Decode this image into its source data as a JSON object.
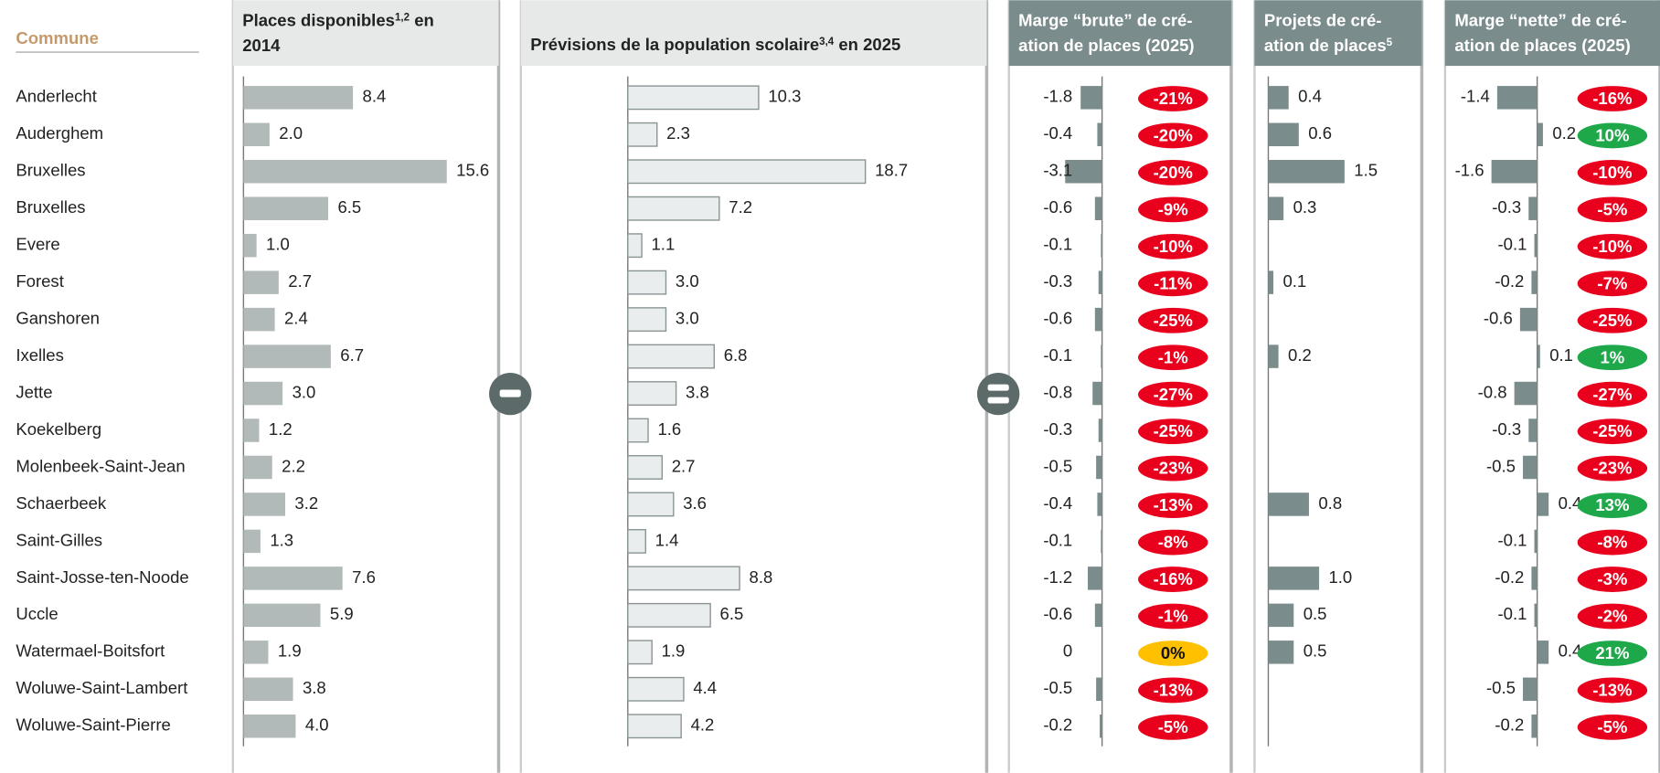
{
  "category_label": "Commune",
  "categories": [
    "Anderlecht",
    "Auderghem",
    "Bruxelles",
    "Bruxelles",
    "Evere",
    "Forest",
    "Ganshoren",
    "Ixelles",
    "Jette",
    "Koekelberg",
    "Molenbeek-Saint-Jean",
    "Schaerbeek",
    "Saint-Gilles",
    "Saint-Josse-ten-Noode",
    "Uccle",
    "Watermael-Boitsfort",
    "Woluwe-Saint-Lambert",
    "Woluwe-Saint-Pierre"
  ],
  "chart_data": [
    {
      "type": "bar",
      "orientation": "horizontal",
      "title": [
        [
          "Places disponibles",
          {
            "sup": "1,2"
          },
          " en"
        ],
        [
          "2014"
        ]
      ],
      "color": "#b1b9b9",
      "xlim": [
        0,
        19.5
      ],
      "values": [
        8.4,
        2.0,
        15.6,
        6.5,
        1.0,
        2.7,
        2.4,
        6.7,
        3.0,
        1.2,
        2.2,
        3.2,
        1.3,
        7.6,
        5.9,
        1.9,
        3.8,
        4.0
      ],
      "value_labels": [
        "8.4",
        "2.0",
        "15.6",
        "6.5",
        "1.0",
        "2.7",
        "2.4",
        "6.7",
        "3.0",
        "1.2",
        "2.2",
        "3.2",
        "1.3",
        "7.6",
        "5.9",
        "1.9",
        "3.8",
        "4.0"
      ]
    },
    {
      "type": "bar",
      "orientation": "horizontal",
      "title": [
        [
          "Prévisions de la population scolaire",
          {
            "sup": "3,4"
          },
          " en 2025"
        ]
      ],
      "color": "#e9eded",
      "edge_color": "#8a9494",
      "xlim": [
        0,
        30
      ],
      "values": [
        10.3,
        2.3,
        18.7,
        7.2,
        1.1,
        3.0,
        3.0,
        6.8,
        3.8,
        1.6,
        2.7,
        3.6,
        1.4,
        8.8,
        6.5,
        1.9,
        4.4,
        4.2
      ],
      "value_labels": [
        "10.3",
        "2.3",
        "18.7",
        "7.2",
        "1.1",
        "3.0",
        "3.0",
        "6.8",
        "3.8",
        "1.6",
        "2.7",
        "3.6",
        "1.4",
        "8.8",
        "6.5",
        "1.9",
        "4.4",
        "4.2"
      ]
    },
    {
      "type": "bar",
      "orientation": "horizontal",
      "title": [
        [
          "Marge “brute” de cré-"
        ],
        [
          "ation de places (2025)"
        ]
      ],
      "color": "#7b8c8c",
      "xlim": [
        -4,
        0
      ],
      "values": [
        -1.8,
        -0.4,
        -3.1,
        -0.6,
        -0.1,
        -0.3,
        -0.6,
        -0.1,
        -0.8,
        -0.3,
        -0.5,
        -0.4,
        -0.1,
        -1.2,
        -0.6,
        0,
        -0.5,
        -0.2
      ],
      "value_labels": [
        "-1.8",
        "-0.4",
        "-3.1",
        "-0.6",
        "-0.1",
        "-0.3",
        "-0.6",
        "-0.1",
        "-0.8",
        "-0.3",
        "-0.5",
        "-0.4",
        "-0.1",
        "-1.2",
        "-0.6",
        "0",
        "-0.5",
        "-0.2"
      ],
      "badges": {
        "values": [
          -21,
          -20,
          -20,
          -9,
          -10,
          -11,
          -25,
          -1,
          -27,
          -25,
          -23,
          -13,
          -8,
          -16,
          -1,
          0,
          -13,
          -5
        ],
        "value_labels": [
          "-21%",
          "-20%",
          "-20%",
          "-9%",
          "-10%",
          "-11%",
          "-25%",
          "-1%",
          "-27%",
          "-25%",
          "-23%",
          "-13%",
          "-8%",
          "-16%",
          "-1%",
          "0%",
          "-13%",
          "-5%"
        ]
      },
      "badge_colors": {
        "negative": "#e8001c",
        "zero": "#ffc000",
        "positive": "#1ea84a"
      }
    },
    {
      "type": "bar",
      "orientation": "horizontal",
      "title": [
        [
          "Projets de cré-"
        ],
        [
          "ation de places",
          {
            "sup": "5"
          }
        ]
      ],
      "color": "#7b8c8c",
      "xlim": [
        0,
        3
      ],
      "values": [
        0.4,
        0.6,
        1.5,
        0.3,
        null,
        0.1,
        null,
        0.2,
        null,
        null,
        null,
        0.8,
        null,
        1.0,
        0.5,
        0.5,
        null,
        null
      ],
      "value_labels": [
        "0.4",
        "0.6",
        "1.5",
        "0.3",
        null,
        "0.1",
        null,
        "0.2",
        null,
        null,
        null,
        "0.8",
        null,
        "1.0",
        "0.5",
        "0.5",
        null,
        null
      ]
    },
    {
      "type": "bar",
      "orientation": "horizontal",
      "title": [
        [
          "Marge “nette” de cré-"
        ],
        [
          "ation de places (2025)"
        ]
      ],
      "color": "#7b8c8c",
      "xlim": [
        -3,
        1
      ],
      "values": [
        -1.4,
        0.2,
        -1.6,
        -0.3,
        -0.1,
        -0.2,
        -0.6,
        0.1,
        -0.8,
        -0.3,
        -0.5,
        0.4,
        -0.1,
        -0.2,
        -0.1,
        0.4,
        -0.5,
        -0.2
      ],
      "value_labels": [
        "-1.4",
        "0.2",
        "-1.6",
        "-0.3",
        "-0.1",
        "-0.2",
        "-0.6",
        "0.1",
        "-0.8",
        "-0.3",
        "-0.5",
        "0.4",
        "-0.1",
        "-0.2",
        "-0.1",
        "0.4",
        "-0.5",
        "-0.2"
      ],
      "badges": {
        "values": [
          -16,
          10,
          -10,
          -5,
          -10,
          -7,
          -25,
          1,
          -27,
          -25,
          -23,
          13,
          -8,
          -3,
          -2,
          21,
          -13,
          -5
        ],
        "value_labels": [
          "-16%",
          "10%",
          "-10%",
          "-5%",
          "-10%",
          "-7%",
          "-25%",
          "1%",
          "-27%",
          "-25%",
          "-23%",
          "13%",
          "-8%",
          "-3%",
          "-2%",
          "21%",
          "-13%",
          "-5%"
        ]
      },
      "badge_colors": {
        "negative": "#e8001c",
        "zero": "#ffc000",
        "positive": "#1ea84a"
      }
    }
  ]
}
